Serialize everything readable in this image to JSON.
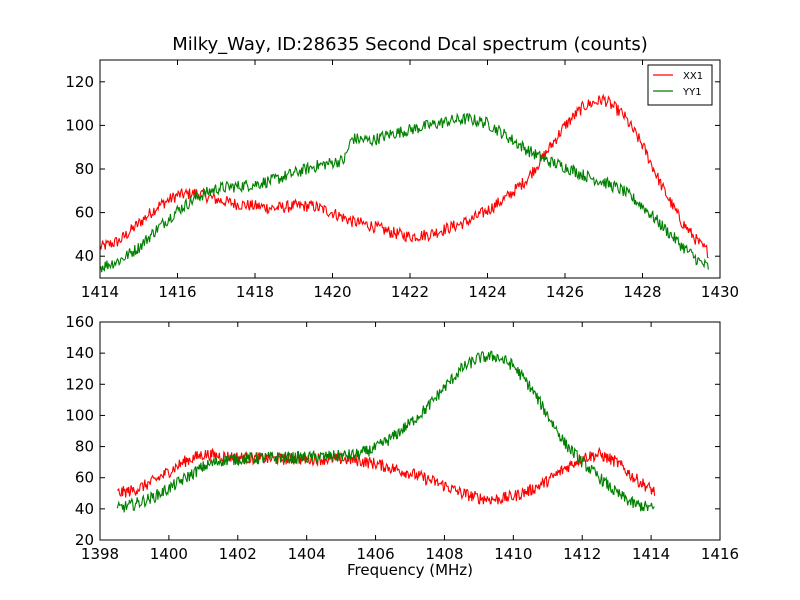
{
  "chart_data": [
    {
      "type": "line",
      "title": "Milky_Way, ID:28635 Second Dcal spectrum (counts)",
      "xlabel": "",
      "ylabel": "",
      "xlim": [
        1414,
        1430
      ],
      "ylim": [
        30,
        130
      ],
      "xticks": [
        1414,
        1416,
        1418,
        1420,
        1422,
        1424,
        1426,
        1428,
        1430
      ],
      "yticks": [
        40,
        60,
        80,
        100,
        120
      ],
      "grid": false,
      "legend": {
        "placement": "top-right"
      },
      "series": [
        {
          "name": "XX1",
          "color": "#ff0000",
          "x": [
            1414.0,
            1414.5,
            1415.0,
            1415.5,
            1416.0,
            1416.5,
            1417.0,
            1417.5,
            1418.0,
            1418.5,
            1419.0,
            1419.5,
            1420.0,
            1420.5,
            1421.0,
            1421.5,
            1422.0,
            1422.5,
            1423.0,
            1423.5,
            1424.0,
            1424.5,
            1425.0,
            1425.5,
            1426.0,
            1426.5,
            1427.0,
            1427.5,
            1428.0,
            1428.5,
            1429.0,
            1429.5,
            1429.7
          ],
          "y": [
            44,
            47,
            55,
            63,
            68,
            69,
            66,
            64,
            63,
            62,
            63,
            63,
            60,
            56,
            54,
            51,
            49,
            50,
            53,
            56,
            61,
            67,
            75,
            87,
            100,
            109,
            112,
            105,
            91,
            72,
            56,
            45,
            42
          ]
        },
        {
          "name": "YY1",
          "color": "#008000",
          "x": [
            1414.0,
            1414.5,
            1415.0,
            1415.5,
            1416.0,
            1416.5,
            1417.0,
            1417.5,
            1418.0,
            1418.5,
            1419.0,
            1419.5,
            1420.0,
            1420.3,
            1420.5,
            1421.0,
            1421.5,
            1422.0,
            1422.5,
            1423.0,
            1423.5,
            1424.0,
            1424.5,
            1425.0,
            1425.5,
            1426.0,
            1426.5,
            1427.0,
            1427.5,
            1428.0,
            1428.5,
            1429.0,
            1429.5,
            1429.7
          ],
          "y": [
            35,
            38,
            44,
            53,
            61,
            67,
            71,
            72,
            73,
            75,
            78,
            81,
            83,
            84,
            94,
            93,
            96,
            98,
            100,
            102,
            103,
            101,
            95,
            89,
            84,
            81,
            77,
            74,
            70,
            63,
            54,
            45,
            37,
            35
          ]
        }
      ]
    },
    {
      "type": "line",
      "title": "",
      "xlabel": "Frequency (MHz)",
      "ylabel": "",
      "xlim": [
        1398,
        1416
      ],
      "ylim": [
        20,
        160
      ],
      "xticks": [
        1398,
        1400,
        1402,
        1404,
        1406,
        1408,
        1410,
        1412,
        1414,
        1416
      ],
      "yticks": [
        20,
        40,
        60,
        80,
        100,
        120,
        140,
        160
      ],
      "grid": false,
      "series": [
        {
          "color": "#ff0000",
          "x": [
            1398.5,
            1399.0,
            1399.5,
            1400.0,
            1400.5,
            1401.0,
            1401.5,
            1402.0,
            1403.0,
            1404.0,
            1405.0,
            1405.5,
            1406.0,
            1406.5,
            1407.0,
            1407.5,
            1408.0,
            1408.5,
            1409.0,
            1409.5,
            1410.0,
            1410.5,
            1411.0,
            1411.5,
            1412.0,
            1412.5,
            1413.0,
            1413.5,
            1414.1
          ],
          "y": [
            50,
            52,
            57,
            64,
            71,
            75,
            74,
            73,
            72,
            72,
            72,
            71,
            69,
            66,
            63,
            59,
            55,
            50,
            47,
            46,
            48,
            52,
            58,
            66,
            73,
            75,
            70,
            60,
            51
          ]
        },
        {
          "color": "#008000",
          "x": [
            1398.5,
            1399.0,
            1399.5,
            1400.0,
            1400.5,
            1401.0,
            1401.5,
            1402.0,
            1403.0,
            1404.0,
            1405.0,
            1405.5,
            1406.0,
            1406.5,
            1407.0,
            1407.5,
            1408.0,
            1408.5,
            1409.0,
            1409.5,
            1410.0,
            1410.5,
            1411.0,
            1411.5,
            1412.0,
            1412.5,
            1413.0,
            1413.5,
            1414.1
          ],
          "y": [
            40,
            43,
            47,
            53,
            60,
            67,
            71,
            72,
            73,
            73,
            74,
            75,
            79,
            86,
            95,
            105,
            118,
            130,
            137,
            138,
            132,
            118,
            100,
            82,
            70,
            60,
            50,
            43,
            40
          ]
        }
      ]
    }
  ]
}
